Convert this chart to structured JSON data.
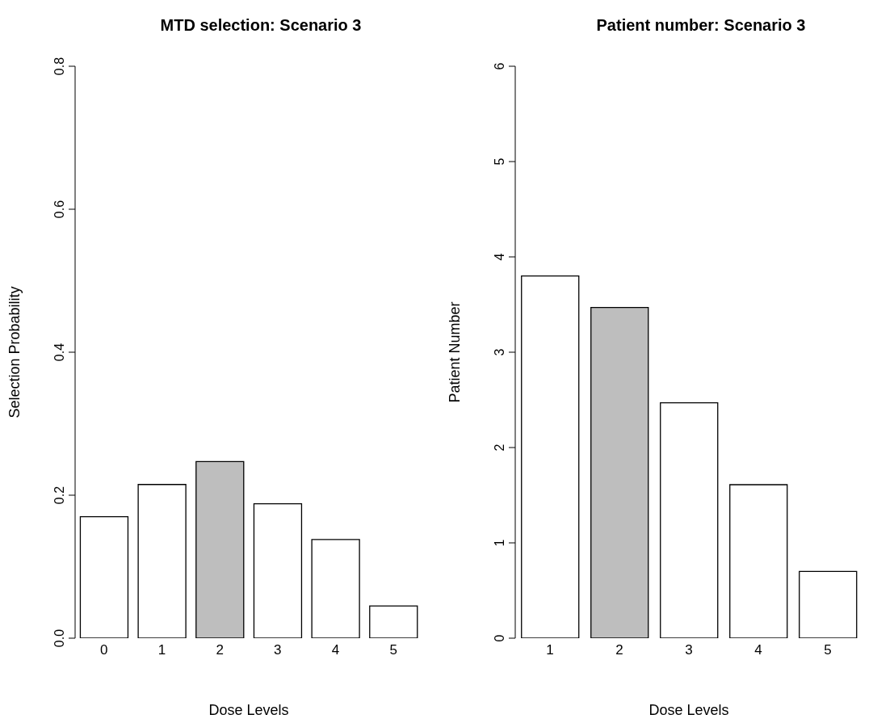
{
  "chart_data": [
    {
      "type": "bar",
      "title": "MTD selection: Scenario  3",
      "xlabel": "Dose Levels",
      "ylabel": "Selection Probability",
      "categories": [
        "0",
        "1",
        "2",
        "3",
        "4",
        "5"
      ],
      "values": [
        0.17,
        0.215,
        0.247,
        0.188,
        0.138,
        0.045
      ],
      "colors": [
        "#ffffff",
        "#ffffff",
        "#bebebe",
        "#ffffff",
        "#ffffff",
        "#ffffff"
      ],
      "ylim": [
        0,
        0.8
      ],
      "yticks": [
        {
          "value": 0,
          "label": "0.0"
        },
        0.2,
        0.4,
        0.6,
        0.8
      ],
      "grid": false
    },
    {
      "type": "bar",
      "title": "Patient number: Scenario  3",
      "xlabel": "Dose Levels",
      "ylabel": "Patient Number",
      "categories": [
        "1",
        "2",
        "3",
        "4",
        "5"
      ],
      "values": [
        3.8,
        3.47,
        2.47,
        1.61,
        0.7
      ],
      "colors": [
        "#ffffff",
        "#bebebe",
        "#ffffff",
        "#ffffff",
        "#ffffff"
      ],
      "ylim": [
        0,
        6
      ],
      "yticks": [
        0,
        1,
        2,
        3,
        4,
        5,
        6
      ],
      "grid": false
    }
  ]
}
